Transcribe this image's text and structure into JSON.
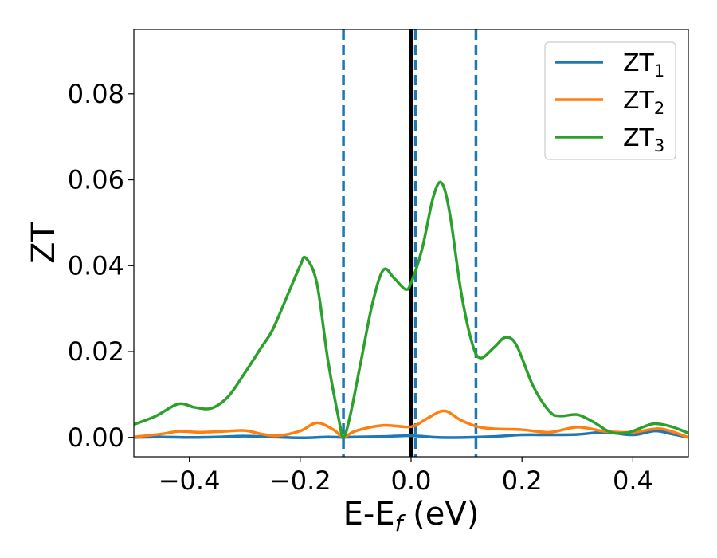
{
  "chart_data": {
    "type": "line",
    "xlabel": {
      "main": "E-E",
      "sub": "f",
      "unit": " (eV)"
    },
    "ylabel": "ZT",
    "xlim": [
      -0.5,
      0.5
    ],
    "ylim": [
      -0.0045,
      0.095
    ],
    "x_ticks": [
      -0.4,
      -0.2,
      0.0,
      0.2,
      0.4
    ],
    "x_tick_labels": [
      "−0.4",
      "−0.2",
      "0.0",
      "0.2",
      "0.4"
    ],
    "y_ticks": [
      0.0,
      0.02,
      0.04,
      0.06,
      0.08
    ],
    "y_tick_labels": [
      "0.00",
      "0.02",
      "0.04",
      "0.06",
      "0.08"
    ],
    "grid": false,
    "legend_position": "top-right",
    "vlines": [
      {
        "x": -0.122,
        "style": "dashed",
        "color": "#1f77b4"
      },
      {
        "x": 0.008,
        "style": "dashed",
        "color": "#1f77b4"
      },
      {
        "x": 0.117,
        "style": "dashed",
        "color": "#1f77b4"
      },
      {
        "x": 0.0,
        "style": "solid",
        "color": "#000000"
      }
    ],
    "series": [
      {
        "name": "ZT",
        "sub": "1",
        "color": "#1f77b4",
        "x": [
          -0.5,
          -0.45,
          -0.4,
          -0.35,
          -0.3,
          -0.25,
          -0.2,
          -0.15,
          -0.122,
          -0.1,
          -0.05,
          0.0,
          0.05,
          0.1,
          0.15,
          0.2,
          0.25,
          0.3,
          0.35,
          0.4,
          0.44,
          0.47,
          0.5
        ],
        "y": [
          0.0,
          0.0001,
          0.0,
          0.0001,
          0.0003,
          0.0001,
          -0.0001,
          0.0001,
          0.0,
          0.0001,
          0.0002,
          0.0004,
          0.0,
          0.0,
          0.0002,
          0.0006,
          0.0006,
          0.0007,
          0.0012,
          0.0006,
          0.0015,
          0.0008,
          0.0
        ]
      },
      {
        "name": "ZT",
        "sub": "2",
        "color": "#ff7f0e",
        "x": [
          -0.5,
          -0.45,
          -0.42,
          -0.38,
          -0.34,
          -0.3,
          -0.27,
          -0.24,
          -0.2,
          -0.17,
          -0.14,
          -0.122,
          -0.1,
          -0.05,
          0.0,
          0.03,
          0.06,
          0.09,
          0.12,
          0.15,
          0.2,
          0.25,
          0.3,
          0.35,
          0.4,
          0.45,
          0.5
        ],
        "y": [
          0.0001,
          0.0008,
          0.0014,
          0.0012,
          0.0014,
          0.0016,
          0.0008,
          0.0004,
          0.0015,
          0.0034,
          0.0018,
          0.0001,
          0.0015,
          0.0028,
          0.0025,
          0.0045,
          0.0062,
          0.004,
          0.0025,
          0.002,
          0.0018,
          0.0012,
          0.0024,
          0.0014,
          0.0012,
          0.002,
          0.0
        ]
      },
      {
        "name": "ZT",
        "sub": "3",
        "color": "#2ca02c",
        "x": [
          -0.5,
          -0.46,
          -0.42,
          -0.39,
          -0.36,
          -0.33,
          -0.3,
          -0.27,
          -0.25,
          -0.22,
          -0.2,
          -0.19,
          -0.17,
          -0.15,
          -0.13,
          -0.122,
          -0.11,
          -0.09,
          -0.07,
          -0.05,
          -0.03,
          -0.01,
          0.0,
          0.02,
          0.04,
          0.055,
          0.07,
          0.09,
          0.11,
          0.125,
          0.15,
          0.17,
          0.19,
          0.22,
          0.25,
          0.27,
          0.3,
          0.33,
          0.36,
          0.39,
          0.42,
          0.44,
          0.47,
          0.5
        ],
        "y": [
          0.003,
          0.005,
          0.0078,
          0.007,
          0.0068,
          0.0095,
          0.015,
          0.021,
          0.025,
          0.034,
          0.04,
          0.0418,
          0.036,
          0.018,
          0.004,
          0.0,
          0.005,
          0.018,
          0.031,
          0.039,
          0.037,
          0.0345,
          0.036,
          0.044,
          0.056,
          0.0593,
          0.052,
          0.034,
          0.022,
          0.0185,
          0.021,
          0.0233,
          0.0215,
          0.012,
          0.006,
          0.005,
          0.0053,
          0.0035,
          0.0012,
          0.0011,
          0.0025,
          0.0032,
          0.0025,
          0.001
        ]
      }
    ]
  }
}
